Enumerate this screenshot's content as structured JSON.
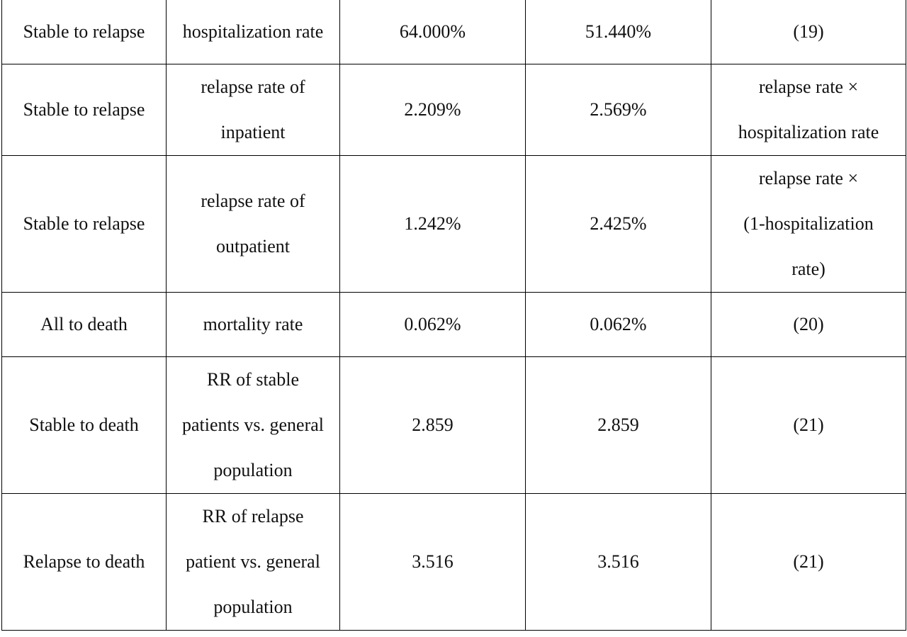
{
  "rows": [
    {
      "transition": "Stable to relapse",
      "parameter": [
        "hospitalization rate"
      ],
      "value_a": "64.000%",
      "value_b": "51.440%",
      "source": [
        "(19)"
      ]
    },
    {
      "transition": "Stable to relapse",
      "parameter": [
        "relapse rate of",
        "inpatient"
      ],
      "value_a": "2.209%",
      "value_b": "2.569%",
      "source": [
        "relapse rate ×",
        "hospitalization rate"
      ]
    },
    {
      "transition": "Stable to relapse",
      "parameter": [
        "relapse rate of",
        "outpatient"
      ],
      "value_a": "1.242%",
      "value_b": "2.425%",
      "source": [
        "relapse rate ×",
        "(1-hospitalization",
        "rate)"
      ]
    },
    {
      "transition": "All to death",
      "parameter": [
        "mortality rate"
      ],
      "value_a": "0.062%",
      "value_b": "0.062%",
      "source": [
        "(20)"
      ]
    },
    {
      "transition": "Stable to death",
      "parameter": [
        "RR of stable",
        "patients vs. general",
        "population"
      ],
      "value_a": "2.859",
      "value_b": "2.859",
      "source": [
        "(21)"
      ]
    },
    {
      "transition": "Relapse to death",
      "parameter": [
        "RR of relapse",
        "patient vs. general",
        "population"
      ],
      "value_a": "3.516",
      "value_b": "3.516",
      "source": [
        "(21)"
      ]
    }
  ]
}
